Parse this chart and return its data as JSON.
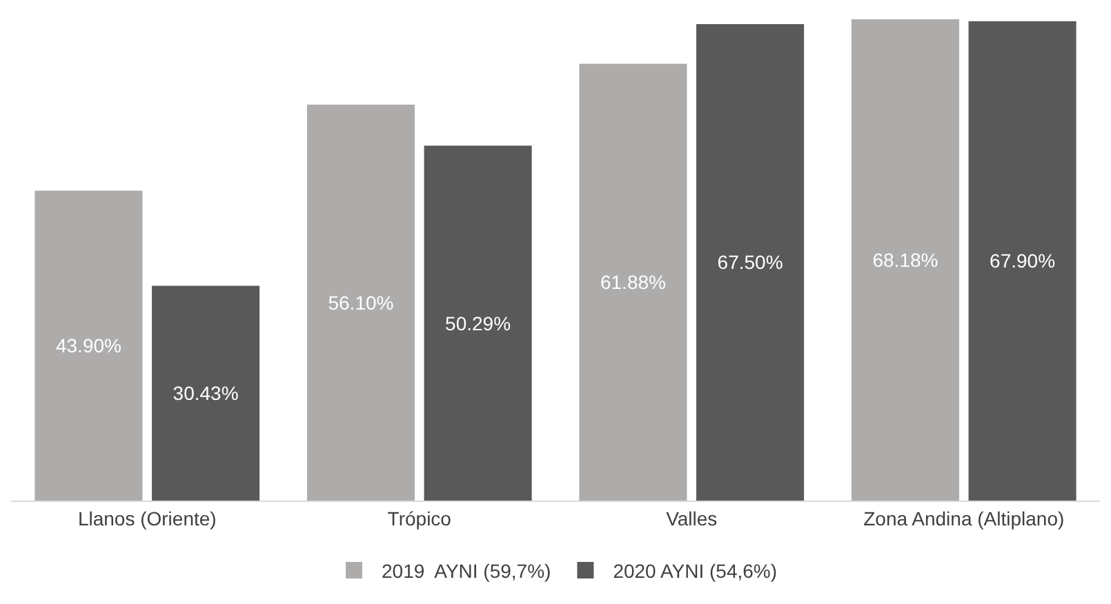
{
  "chart_data": {
    "type": "bar",
    "categories": [
      "Llanos (Oriente)",
      "Trópico",
      "Valles",
      "Zona Andina (Altiplano)"
    ],
    "series": [
      {
        "name": "2019  AYNI (59,7%)",
        "color": "#aeabab",
        "values": [
          43.9,
          56.1,
          61.88,
          68.18
        ],
        "value_labels": [
          "43.90%",
          "56.10%",
          "61.88%",
          "68.18%"
        ]
      },
      {
        "name": "2020 AYNI (54,6%)",
        "color": "#595959",
        "values": [
          30.43,
          50.29,
          67.5,
          67.9
        ],
        "value_labels": [
          "30.43%",
          "50.29%",
          "67.50%",
          "67.90%"
        ]
      }
    ],
    "legend": "bottom",
    "grid": false
  }
}
